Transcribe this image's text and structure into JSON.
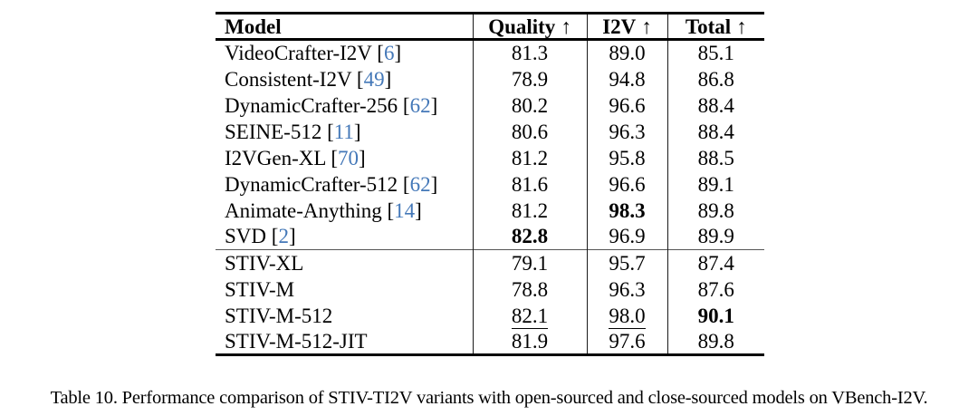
{
  "colors": {
    "citation_blue": "#4478b8",
    "rule_black": "#000000"
  },
  "table": {
    "columns": [
      {
        "label": "Model",
        "arrow": ""
      },
      {
        "label": "Quality",
        "arrow": "↑"
      },
      {
        "label": "I2V",
        "arrow": "↑"
      },
      {
        "label": "Total",
        "arrow": "↑"
      }
    ],
    "groups": [
      {
        "rows": [
          {
            "model": "VideoCrafter-I2V",
            "cite": "6",
            "cells": [
              {
                "v": "81.3",
                "s": ""
              },
              {
                "v": "89.0",
                "s": ""
              },
              {
                "v": "85.1",
                "s": ""
              }
            ]
          },
          {
            "model": "Consistent-I2V",
            "cite": "49",
            "cells": [
              {
                "v": "78.9",
                "s": ""
              },
              {
                "v": "94.8",
                "s": ""
              },
              {
                "v": "86.8",
                "s": ""
              }
            ]
          },
          {
            "model": "DynamicCrafter-256",
            "cite": "62",
            "cells": [
              {
                "v": "80.2",
                "s": ""
              },
              {
                "v": "96.6",
                "s": ""
              },
              {
                "v": "88.4",
                "s": ""
              }
            ]
          },
          {
            "model": "SEINE-512",
            "cite": "11",
            "cells": [
              {
                "v": "80.6",
                "s": ""
              },
              {
                "v": "96.3",
                "s": ""
              },
              {
                "v": "88.4",
                "s": ""
              }
            ]
          },
          {
            "model": "I2VGen-XL",
            "cite": "70",
            "cells": [
              {
                "v": "81.2",
                "s": ""
              },
              {
                "v": "95.8",
                "s": ""
              },
              {
                "v": "88.5",
                "s": ""
              }
            ]
          },
          {
            "model": "DynamicCrafter-512",
            "cite": "62",
            "cells": [
              {
                "v": "81.6",
                "s": ""
              },
              {
                "v": "96.6",
                "s": ""
              },
              {
                "v": "89.1",
                "s": ""
              }
            ]
          },
          {
            "model": "Animate-Anything",
            "cite": "14",
            "cells": [
              {
                "v": "81.2",
                "s": ""
              },
              {
                "v": "98.3",
                "s": "b"
              },
              {
                "v": "89.8",
                "s": ""
              }
            ]
          },
          {
            "model": "SVD",
            "cite": "2",
            "cells": [
              {
                "v": "82.8",
                "s": "b"
              },
              {
                "v": "96.9",
                "s": ""
              },
              {
                "v": "89.9",
                "s": ""
              }
            ]
          }
        ]
      },
      {
        "rows": [
          {
            "model": "STIV-XL",
            "cite": null,
            "cells": [
              {
                "v": "79.1",
                "s": ""
              },
              {
                "v": "95.7",
                "s": ""
              },
              {
                "v": "87.4",
                "s": ""
              }
            ]
          },
          {
            "model": "STIV-M",
            "cite": null,
            "cells": [
              {
                "v": "78.8",
                "s": ""
              },
              {
                "v": "96.3",
                "s": ""
              },
              {
                "v": "87.6",
                "s": ""
              }
            ]
          },
          {
            "model": "STIV-M-512",
            "cite": null,
            "cells": [
              {
                "v": "82.1",
                "s": "u"
              },
              {
                "v": "98.0",
                "s": "u"
              },
              {
                "v": "90.1",
                "s": "b"
              }
            ]
          },
          {
            "model": "STIV-M-512-JIT",
            "cite": null,
            "cells": [
              {
                "v": "81.9",
                "s": ""
              },
              {
                "v": "97.6",
                "s": ""
              },
              {
                "v": "89.8",
                "s": ""
              }
            ]
          }
        ]
      }
    ]
  },
  "caption": {
    "text": "Table 10. Performance comparison of STIV-TI2V variants with open-sourced and close-sourced models on VBench-I2V."
  }
}
